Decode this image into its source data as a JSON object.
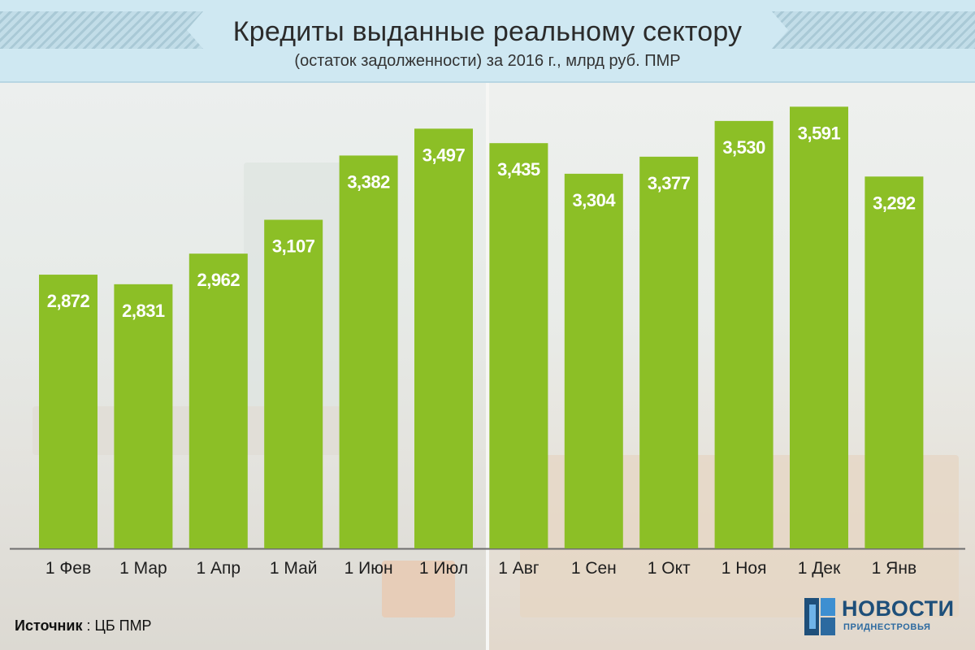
{
  "header": {
    "title": "Кредиты выданные реальному сектору",
    "subtitle": "(остаток задолженности) за 2016 г., млрд руб. ПМР"
  },
  "source": {
    "key": "Источник",
    "separator": " : ",
    "value": "ЦБ ПМР"
  },
  "logo": {
    "title": "НОВОСТИ",
    "subtitle": "ПРИДНЕСТРОВЬЯ"
  },
  "colors": {
    "bar": "#8cbf26",
    "axis": "#6e6e6e",
    "header_bg": "#cfe8f2",
    "logo_blue": "#1e4f7a"
  },
  "chart_data": {
    "type": "bar",
    "title": "Кредиты выданные реальному сектору",
    "subtitle": "(остаток задолженности) за 2016 г., млрд руб. ПМР",
    "categories": [
      "1 Фев",
      "1 Мар",
      "1 Апр",
      "1 Май",
      "1 Июн",
      "1 Июл",
      "1 Авг",
      "1 Сен",
      "1 Окт",
      "1 Ноя",
      "1 Дек",
      "1 Янв"
    ],
    "values": [
      2.872,
      2.831,
      2.962,
      3.107,
      3.382,
      3.497,
      3.435,
      3.304,
      3.377,
      3.53,
      3.591,
      3.292
    ],
    "value_labels": [
      "2,872",
      "2,831",
      "2,962",
      "3,107",
      "3,382",
      "3,497",
      "3,435",
      "3,304",
      "3,377",
      "3,530",
      "3,591",
      "3,292"
    ],
    "xlabel": "",
    "ylabel": "",
    "ylim": [
      1.7,
      3.7
    ],
    "grid": false,
    "legend": "none"
  }
}
